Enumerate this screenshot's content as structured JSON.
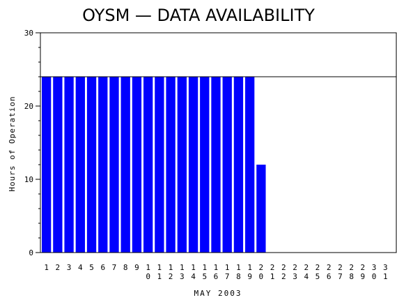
{
  "chart_data": {
    "type": "bar",
    "title": "OYSM  —  DATA AVAILABILITY",
    "xlabel": "MAY 2003",
    "ylabel": "Hours of Operation",
    "ylim": [
      0,
      30
    ],
    "yticks": [
      0,
      10,
      20,
      30
    ],
    "reference_line": 24,
    "bar_color": "#0000ff",
    "categories": [
      "1",
      "2",
      "3",
      "4",
      "5",
      "6",
      "7",
      "8",
      "9",
      "10",
      "11",
      "12",
      "13",
      "14",
      "15",
      "16",
      "17",
      "18",
      "19",
      "20",
      "21",
      "22",
      "23",
      "24",
      "25",
      "26",
      "27",
      "28",
      "29",
      "30",
      "31"
    ],
    "values": [
      24,
      24,
      24,
      24,
      24,
      24,
      24,
      24,
      24,
      24,
      24,
      24,
      24,
      24,
      24,
      24,
      24,
      24,
      24,
      12,
      0,
      0,
      0,
      0,
      0,
      0,
      0,
      0,
      0,
      0,
      0
    ],
    "grid": false
  }
}
